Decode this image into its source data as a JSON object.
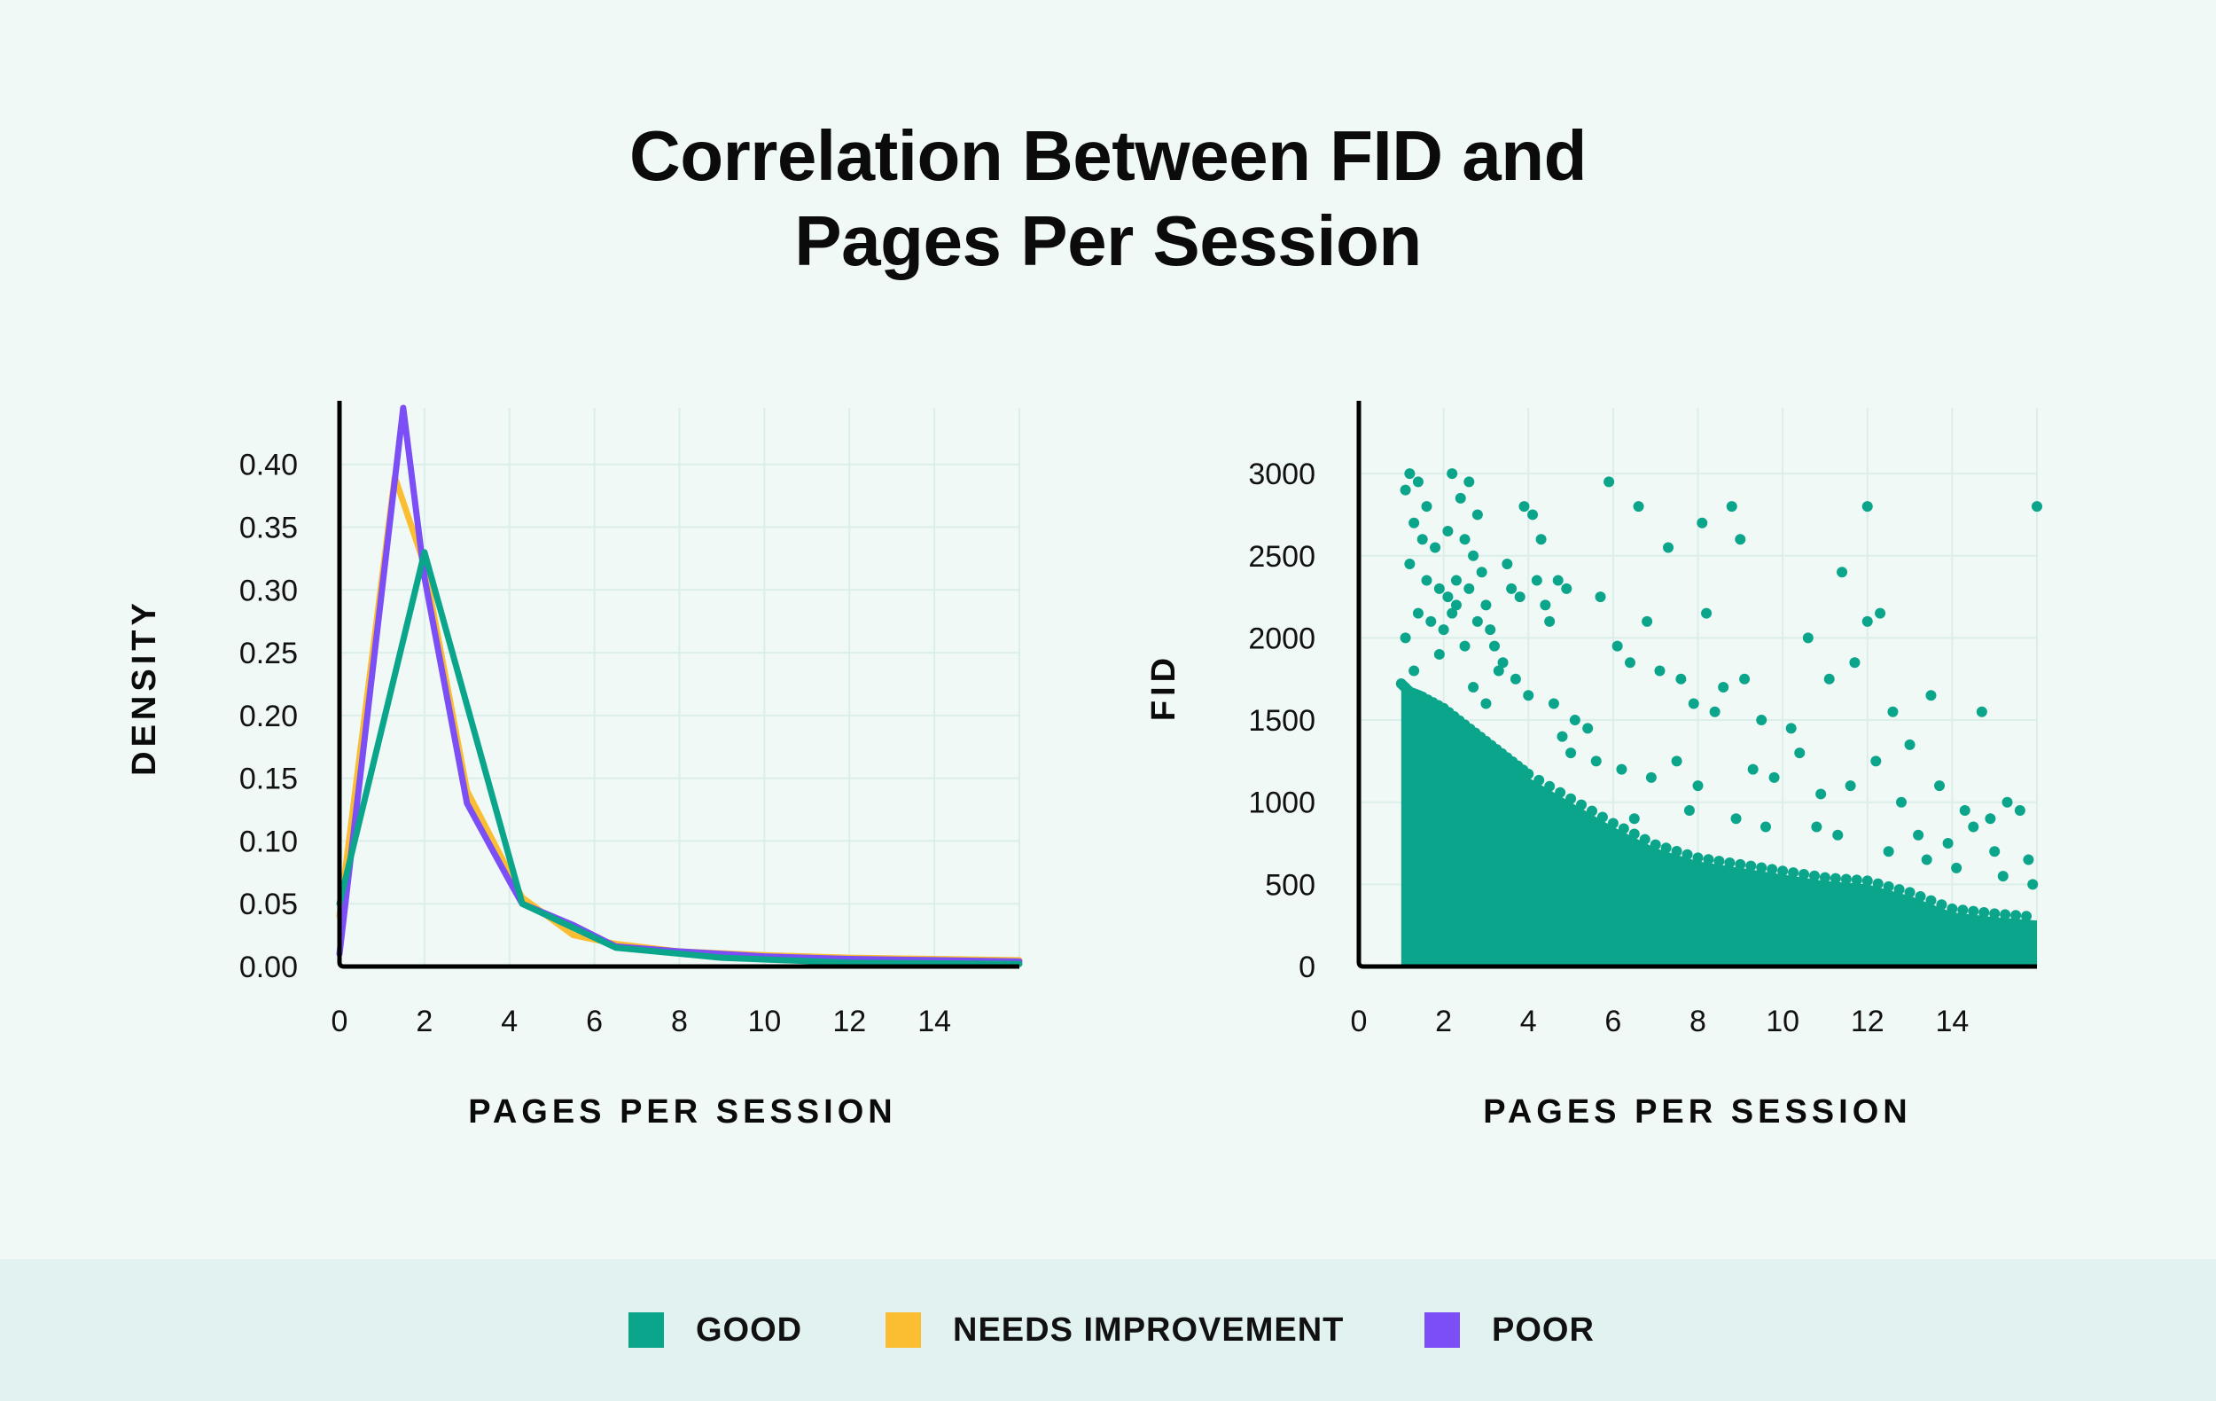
{
  "title": {
    "line1": "Correlation Between FID and",
    "line2": "Pages Per Session"
  },
  "legend": [
    {
      "label": "GOOD",
      "color": "#0aa58a"
    },
    {
      "label": "NEEDS IMPROVEMENT",
      "color": "#fbbd31"
    },
    {
      "label": "POOR",
      "color": "#7b4ff5"
    }
  ],
  "chart_data": [
    {
      "type": "line",
      "xlabel": "PAGES PER SESSION",
      "ylabel": "DENSITY",
      "xlim": [
        0,
        16
      ],
      "ylim": [
        0,
        0.445
      ],
      "xticks": [
        "0",
        "2",
        "4",
        "6",
        "8",
        "10",
        "12",
        "14"
      ],
      "yticks": [
        "0.00",
        "0.05",
        "0.10",
        "0.15",
        "0.20",
        "0.25",
        "0.30",
        "0.35",
        "0.40"
      ],
      "grid": true,
      "series": [
        {
          "name": "NEEDS IMPROVEMENT",
          "color": "#fbbd31",
          "x": [
            0,
            1.3,
            2,
            3,
            4.3,
            5.5,
            6.5,
            8,
            10,
            12,
            14,
            16
          ],
          "y": [
            0.04,
            0.39,
            0.32,
            0.14,
            0.055,
            0.025,
            0.018,
            0.012,
            0.009,
            0.007,
            0.006,
            0.005
          ]
        },
        {
          "name": "POOR",
          "color": "#7b4ff5",
          "x": [
            0,
            1.5,
            2,
            3,
            4,
            4.3,
            5.5,
            6.5,
            8,
            10,
            12,
            14,
            16
          ],
          "y": [
            0.01,
            0.445,
            0.31,
            0.13,
            0.068,
            0.05,
            0.033,
            0.016,
            0.012,
            0.008,
            0.006,
            0.005,
            0.004
          ]
        },
        {
          "name": "GOOD",
          "color": "#0aa58a",
          "x": [
            0,
            2,
            4.3,
            6.5,
            9,
            12,
            16
          ],
          "y": [
            0.05,
            0.33,
            0.05,
            0.015,
            0.007,
            0.003,
            0.002
          ]
        }
      ]
    },
    {
      "type": "scatter",
      "xlabel": "PAGES PER SESSION",
      "ylabel": "FID",
      "xlim": [
        0,
        16
      ],
      "ylim": [
        0,
        3400
      ],
      "xticks": [
        "0",
        "2",
        "4",
        "6",
        "8",
        "10",
        "12",
        "14"
      ],
      "yticks": [
        "0",
        "500",
        "1000",
        "1500",
        "2000",
        "2500",
        "3000"
      ],
      "grid": true,
      "color": "#0aa58a",
      "density_envelope": {
        "x": [
          1,
          1.2,
          1.5,
          2,
          2.5,
          3,
          3.5,
          4,
          5,
          6,
          7,
          8,
          9,
          10,
          11,
          12,
          13,
          14,
          15,
          16
        ],
        "y": [
          1700,
          1650,
          1620,
          1550,
          1450,
          1350,
          1250,
          1150,
          1000,
          850,
          720,
          640,
          600,
          560,
          520,
          500,
          430,
          330,
          300,
          280
        ]
      },
      "points": [
        [
          1.1,
          2900
        ],
        [
          1.2,
          3000
        ],
        [
          1.4,
          2950
        ],
        [
          1.6,
          2800
        ],
        [
          1.3,
          2700
        ],
        [
          1.5,
          2600
        ],
        [
          1.8,
          2550
        ],
        [
          1.2,
          2450
        ],
        [
          1.6,
          2350
        ],
        [
          1.9,
          2300
        ],
        [
          2.1,
          2250
        ],
        [
          2.3,
          2200
        ],
        [
          1.4,
          2150
        ],
        [
          1.7,
          2100
        ],
        [
          2.0,
          2050
        ],
        [
          1.1,
          2000
        ],
        [
          2.2,
          3000
        ],
        [
          2.6,
          2950
        ],
        [
          2.4,
          2850
        ],
        [
          2.8,
          2750
        ],
        [
          2.1,
          2650
        ],
        [
          2.5,
          2600
        ],
        [
          2.7,
          2500
        ],
        [
          2.9,
          2400
        ],
        [
          2.3,
          2350
        ],
        [
          2.6,
          2300
        ],
        [
          3.0,
          2200
        ],
        [
          2.2,
          2150
        ],
        [
          2.8,
          2100
        ],
        [
          3.1,
          2050
        ],
        [
          2.5,
          1950
        ],
        [
          1.9,
          1900
        ],
        [
          3.2,
          1950
        ],
        [
          3.4,
          1850
        ],
        [
          3.6,
          2300
        ],
        [
          3.9,
          2800
        ],
        [
          4.1,
          2750
        ],
        [
          4.3,
          2600
        ],
        [
          3.5,
          2450
        ],
        [
          3.8,
          2250
        ],
        [
          4.2,
          2350
        ],
        [
          4.4,
          2200
        ],
        [
          4.7,
          2350
        ],
        [
          4.9,
          2300
        ],
        [
          4.5,
          2100
        ],
        [
          3.3,
          1800
        ],
        [
          3.7,
          1750
        ],
        [
          4.0,
          1650
        ],
        [
          4.6,
          1600
        ],
        [
          5.1,
          1500
        ],
        [
          5.4,
          1450
        ],
        [
          5.7,
          2250
        ],
        [
          5.9,
          2950
        ],
        [
          6.6,
          2800
        ],
        [
          7.3,
          2550
        ],
        [
          8.1,
          2700
        ],
        [
          8.8,
          2800
        ],
        [
          9.0,
          2600
        ],
        [
          6.1,
          1950
        ],
        [
          6.4,
          1850
        ],
        [
          6.8,
          2100
        ],
        [
          7.1,
          1800
        ],
        [
          7.6,
          1750
        ],
        [
          8.2,
          2150
        ],
        [
          8.6,
          1700
        ],
        [
          9.1,
          1750
        ],
        [
          7.9,
          1600
        ],
        [
          8.4,
          1550
        ],
        [
          9.5,
          1500
        ],
        [
          10.2,
          1450
        ],
        [
          10.6,
          2000
        ],
        [
          11.1,
          1750
        ],
        [
          11.7,
          1850
        ],
        [
          11.4,
          2400
        ],
        [
          12.0,
          2100
        ],
        [
          12.3,
          2150
        ],
        [
          12.6,
          1550
        ],
        [
          13.0,
          1350
        ],
        [
          13.5,
          1650
        ],
        [
          14.7,
          1550
        ],
        [
          12.0,
          2800
        ],
        [
          16.0,
          2800
        ],
        [
          5.0,
          1300
        ],
        [
          5.6,
          1250
        ],
        [
          6.2,
          1200
        ],
        [
          6.9,
          1150
        ],
        [
          7.5,
          1250
        ],
        [
          8.0,
          1100
        ],
        [
          9.3,
          1200
        ],
        [
          9.8,
          1150
        ],
        [
          10.4,
          1300
        ],
        [
          10.9,
          1050
        ],
        [
          11.6,
          1100
        ],
        [
          12.2,
          1250
        ],
        [
          12.8,
          1000
        ],
        [
          13.7,
          1100
        ],
        [
          14.3,
          950
        ],
        [
          14.9,
          900
        ],
        [
          15.3,
          1000
        ],
        [
          15.6,
          950
        ],
        [
          13.2,
          800
        ],
        [
          13.9,
          750
        ],
        [
          14.5,
          850
        ],
        [
          15.0,
          700
        ],
        [
          15.8,
          650
        ],
        [
          6.5,
          900
        ],
        [
          7.8,
          950
        ],
        [
          8.9,
          900
        ],
        [
          9.6,
          850
        ],
        [
          10.8,
          850
        ],
        [
          11.3,
          800
        ],
        [
          12.5,
          700
        ],
        [
          13.4,
          650
        ],
        [
          14.1,
          600
        ],
        [
          15.2,
          550
        ],
        [
          15.9,
          500
        ],
        [
          4.8,
          1400
        ],
        [
          3.0,
          1600
        ],
        [
          2.7,
          1700
        ],
        [
          1.3,
          1800
        ]
      ]
    }
  ]
}
